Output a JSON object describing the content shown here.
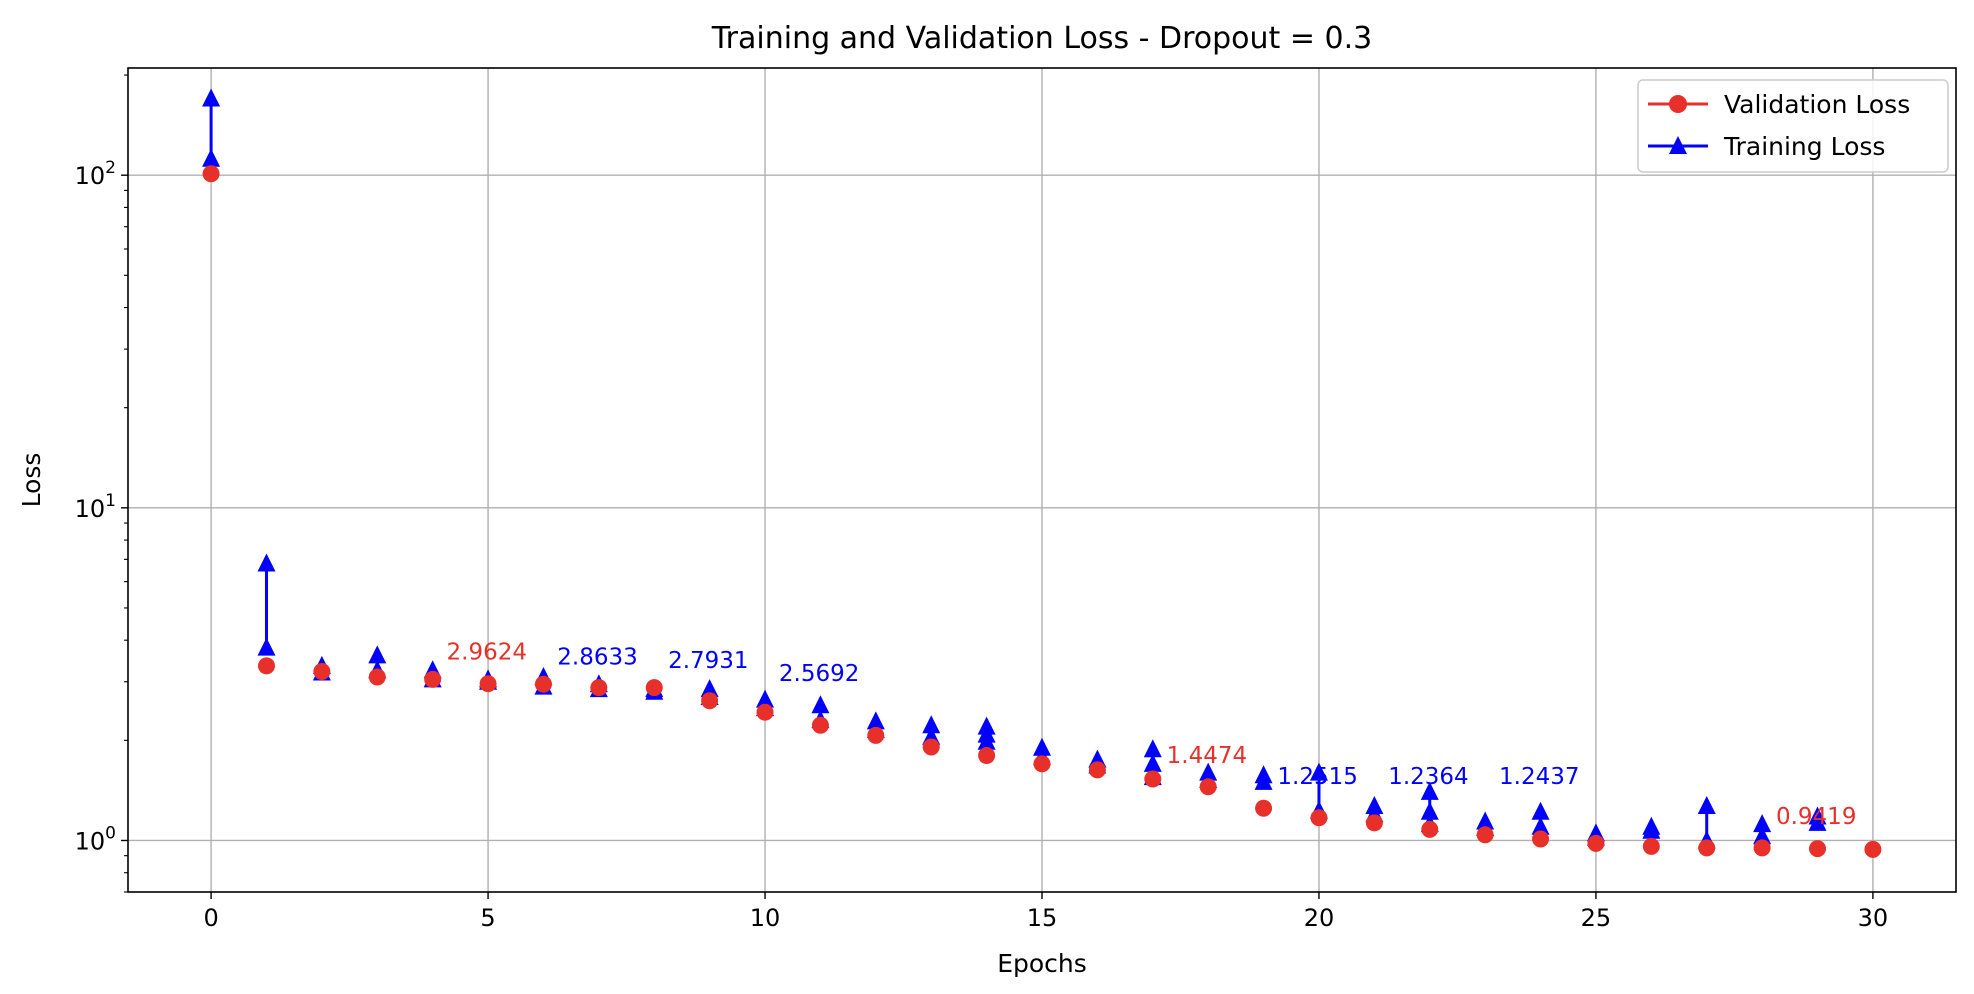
{
  "chart_data": {
    "type": "line",
    "title": "Training and Validation Loss - Dropout = 0.3",
    "xlabel": "Epochs",
    "ylabel": "Loss",
    "yscale": "log",
    "xlim": [
      -1.5,
      31.5
    ],
    "ylim": [
      0.7,
      210
    ],
    "xticks": [
      0,
      5,
      10,
      15,
      20,
      25,
      30
    ],
    "yticks": [
      {
        "value": 1,
        "base": "10",
        "exp": "0"
      },
      {
        "value": 10,
        "base": "10",
        "exp": "1"
      },
      {
        "value": 100,
        "base": "10",
        "exp": "2"
      }
    ],
    "grid": true,
    "legend_position": "top-right",
    "colors": {
      "validation": "#e8302a",
      "training": "#0000ff",
      "grid": "#b0b0b0"
    },
    "series": [
      {
        "name": "Validation Loss",
        "marker": "circle",
        "x": [
          0,
          1,
          2,
          3,
          4,
          5,
          6,
          7,
          8,
          9,
          10,
          11,
          12,
          13,
          14,
          15,
          16,
          17,
          18,
          19,
          20,
          21,
          22,
          23,
          24,
          25,
          26,
          27,
          28,
          29,
          30
        ],
        "values": [
          101,
          3.35,
          3.22,
          3.1,
          3.05,
          2.96,
          2.95,
          2.88,
          2.88,
          2.63,
          2.43,
          2.22,
          2.07,
          1.91,
          1.8,
          1.7,
          1.63,
          1.53,
          1.45,
          1.25,
          1.17,
          1.13,
          1.08,
          1.04,
          1.01,
          0.98,
          0.96,
          0.95,
          0.95,
          0.945,
          0.94
        ]
      },
      {
        "name": "Training Loss",
        "marker": "triangle",
        "segments": [
          {
            "x": 0,
            "values": [
              112,
              170
            ]
          },
          {
            "x": 1,
            "values": [
              3.8,
              6.8
            ]
          },
          {
            "x": 2,
            "values": [
              3.2,
              3.35
            ]
          },
          {
            "x": 3,
            "values": [
              3.25,
              3.6
            ]
          },
          {
            "x": 4,
            "values": [
              3.05,
              3.25
            ]
          },
          {
            "x": 5,
            "values": [
              3.0,
              3.05
            ]
          },
          {
            "x": 6,
            "values": [
              2.9,
              3.1
            ]
          },
          {
            "x": 7,
            "values": [
              2.85,
              2.95
            ]
          },
          {
            "x": 8,
            "values": [
              2.8,
              2.85
            ]
          },
          {
            "x": 9,
            "values": [
              2.7,
              2.85
            ]
          },
          {
            "x": 10,
            "values": [
              2.5,
              2.65
            ]
          },
          {
            "x": 11,
            "values": [
              2.3,
              2.55
            ]
          },
          {
            "x": 12,
            "values": [
              2.15,
              2.28
            ]
          },
          {
            "x": 13,
            "values": [
              2.05,
              2.22
            ]
          },
          {
            "x": 14,
            "values": [
              1.98,
              2.08,
              2.2
            ]
          },
          {
            "x": 15,
            "values": [
              1.78,
              1.9
            ]
          },
          {
            "x": 16,
            "values": [
              1.68,
              1.75
            ]
          },
          {
            "x": 17,
            "values": [
              1.55,
              1.7,
              1.88
            ]
          },
          {
            "x": 18,
            "values": [
              1.52,
              1.6
            ]
          },
          {
            "x": 19,
            "values": [
              1.5,
              1.57
            ]
          },
          {
            "x": 20,
            "values": [
              1.23,
              1.6
            ]
          },
          {
            "x": 21,
            "values": [
              1.2,
              1.27
            ]
          },
          {
            "x": 22,
            "values": [
              1.12,
              1.22,
              1.4
            ]
          },
          {
            "x": 23,
            "values": [
              1.09,
              1.14
            ]
          },
          {
            "x": 24,
            "values": [
              1.1,
              1.22
            ]
          },
          {
            "x": 25,
            "values": [
              1.02,
              1.05
            ]
          },
          {
            "x": 26,
            "values": [
              1.07,
              1.1
            ]
          },
          {
            "x": 27,
            "values": [
              1.0,
              1.27
            ]
          },
          {
            "x": 28,
            "values": [
              1.03,
              1.12
            ]
          },
          {
            "x": 29,
            "values": [
              1.13,
              1.18
            ]
          }
        ]
      }
    ],
    "annotations": [
      {
        "text": "2.9624",
        "x": 4.25,
        "y": 3.5,
        "color": "validation"
      },
      {
        "text": "2.8633",
        "x": 6.25,
        "y": 3.38,
        "color": "training"
      },
      {
        "text": "2.7931",
        "x": 8.25,
        "y": 3.3,
        "color": "training"
      },
      {
        "text": "2.5692",
        "x": 10.25,
        "y": 3.02,
        "color": "training"
      },
      {
        "text": "1.4474",
        "x": 17.25,
        "y": 1.71,
        "color": "validation"
      },
      {
        "text": "1.2515",
        "x": 19.25,
        "y": 1.48,
        "color": "training"
      },
      {
        "text": "1.2364",
        "x": 21.25,
        "y": 1.48,
        "color": "training"
      },
      {
        "text": "1.2437",
        "x": 23.25,
        "y": 1.48,
        "color": "training"
      },
      {
        "text": "0.9419",
        "x": 28.25,
        "y": 1.12,
        "color": "validation"
      }
    ]
  }
}
